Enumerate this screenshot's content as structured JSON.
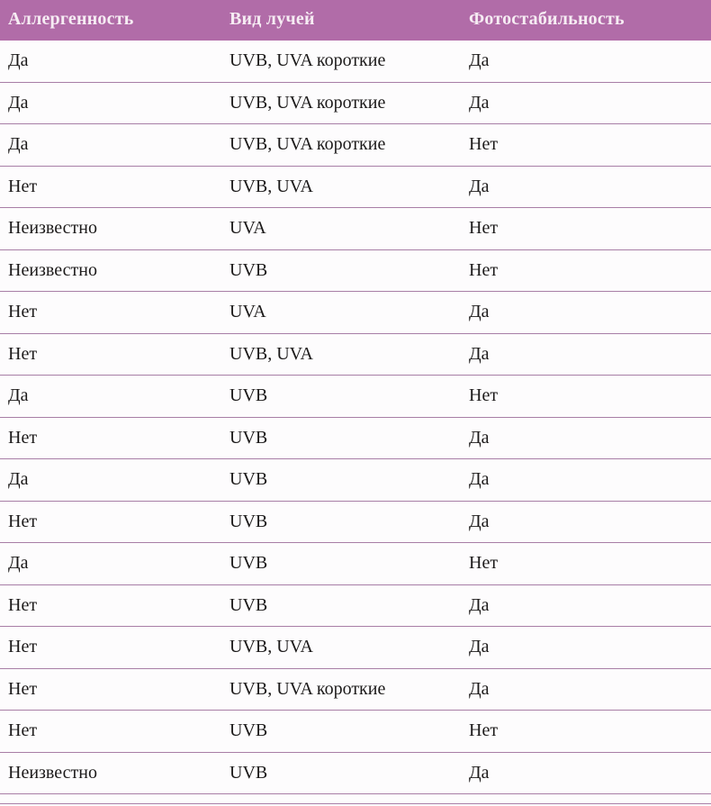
{
  "table": {
    "columns": [
      "Аллергенность",
      "Вид лучей",
      "Фотостабильность"
    ],
    "rows": [
      [
        "Да",
        "UVB, UVA короткие",
        "Да"
      ],
      [
        "Да",
        "UVB, UVA короткие",
        "Да"
      ],
      [
        "Да",
        "UVB, UVA короткие",
        "Нет"
      ],
      [
        "Нет",
        "UVB, UVA",
        "Да"
      ],
      [
        "Неизвестно",
        "UVA",
        "Нет"
      ],
      [
        "Неизвестно",
        "UVB",
        "Нет"
      ],
      [
        "Нет",
        "UVA",
        "Да"
      ],
      [
        "Нет",
        "UVB, UVA",
        "Да"
      ],
      [
        "Да",
        "UVB",
        "Нет"
      ],
      [
        "Нет",
        "UVB",
        "Да"
      ],
      [
        "Да",
        "UVB",
        "Да"
      ],
      [
        "Нет",
        "UVB",
        "Да"
      ],
      [
        "Да",
        "UVB",
        "Нет"
      ],
      [
        "Нет",
        "UVB",
        "Да"
      ],
      [
        "Нет",
        "UVB, UVA",
        "Да"
      ],
      [
        "Нет",
        "UVB, UVA короткие",
        "Да"
      ],
      [
        "Нет",
        "UVB",
        "Нет"
      ],
      [
        "Неизвестно",
        "UVB",
        "Да"
      ]
    ],
    "colors": {
      "header_bg": "#b16ca8",
      "header_text": "#f6ecf3",
      "row_bg": "#fdfcfd",
      "divider": "#a87ea6",
      "body_text": "#1c1a1a"
    }
  }
}
